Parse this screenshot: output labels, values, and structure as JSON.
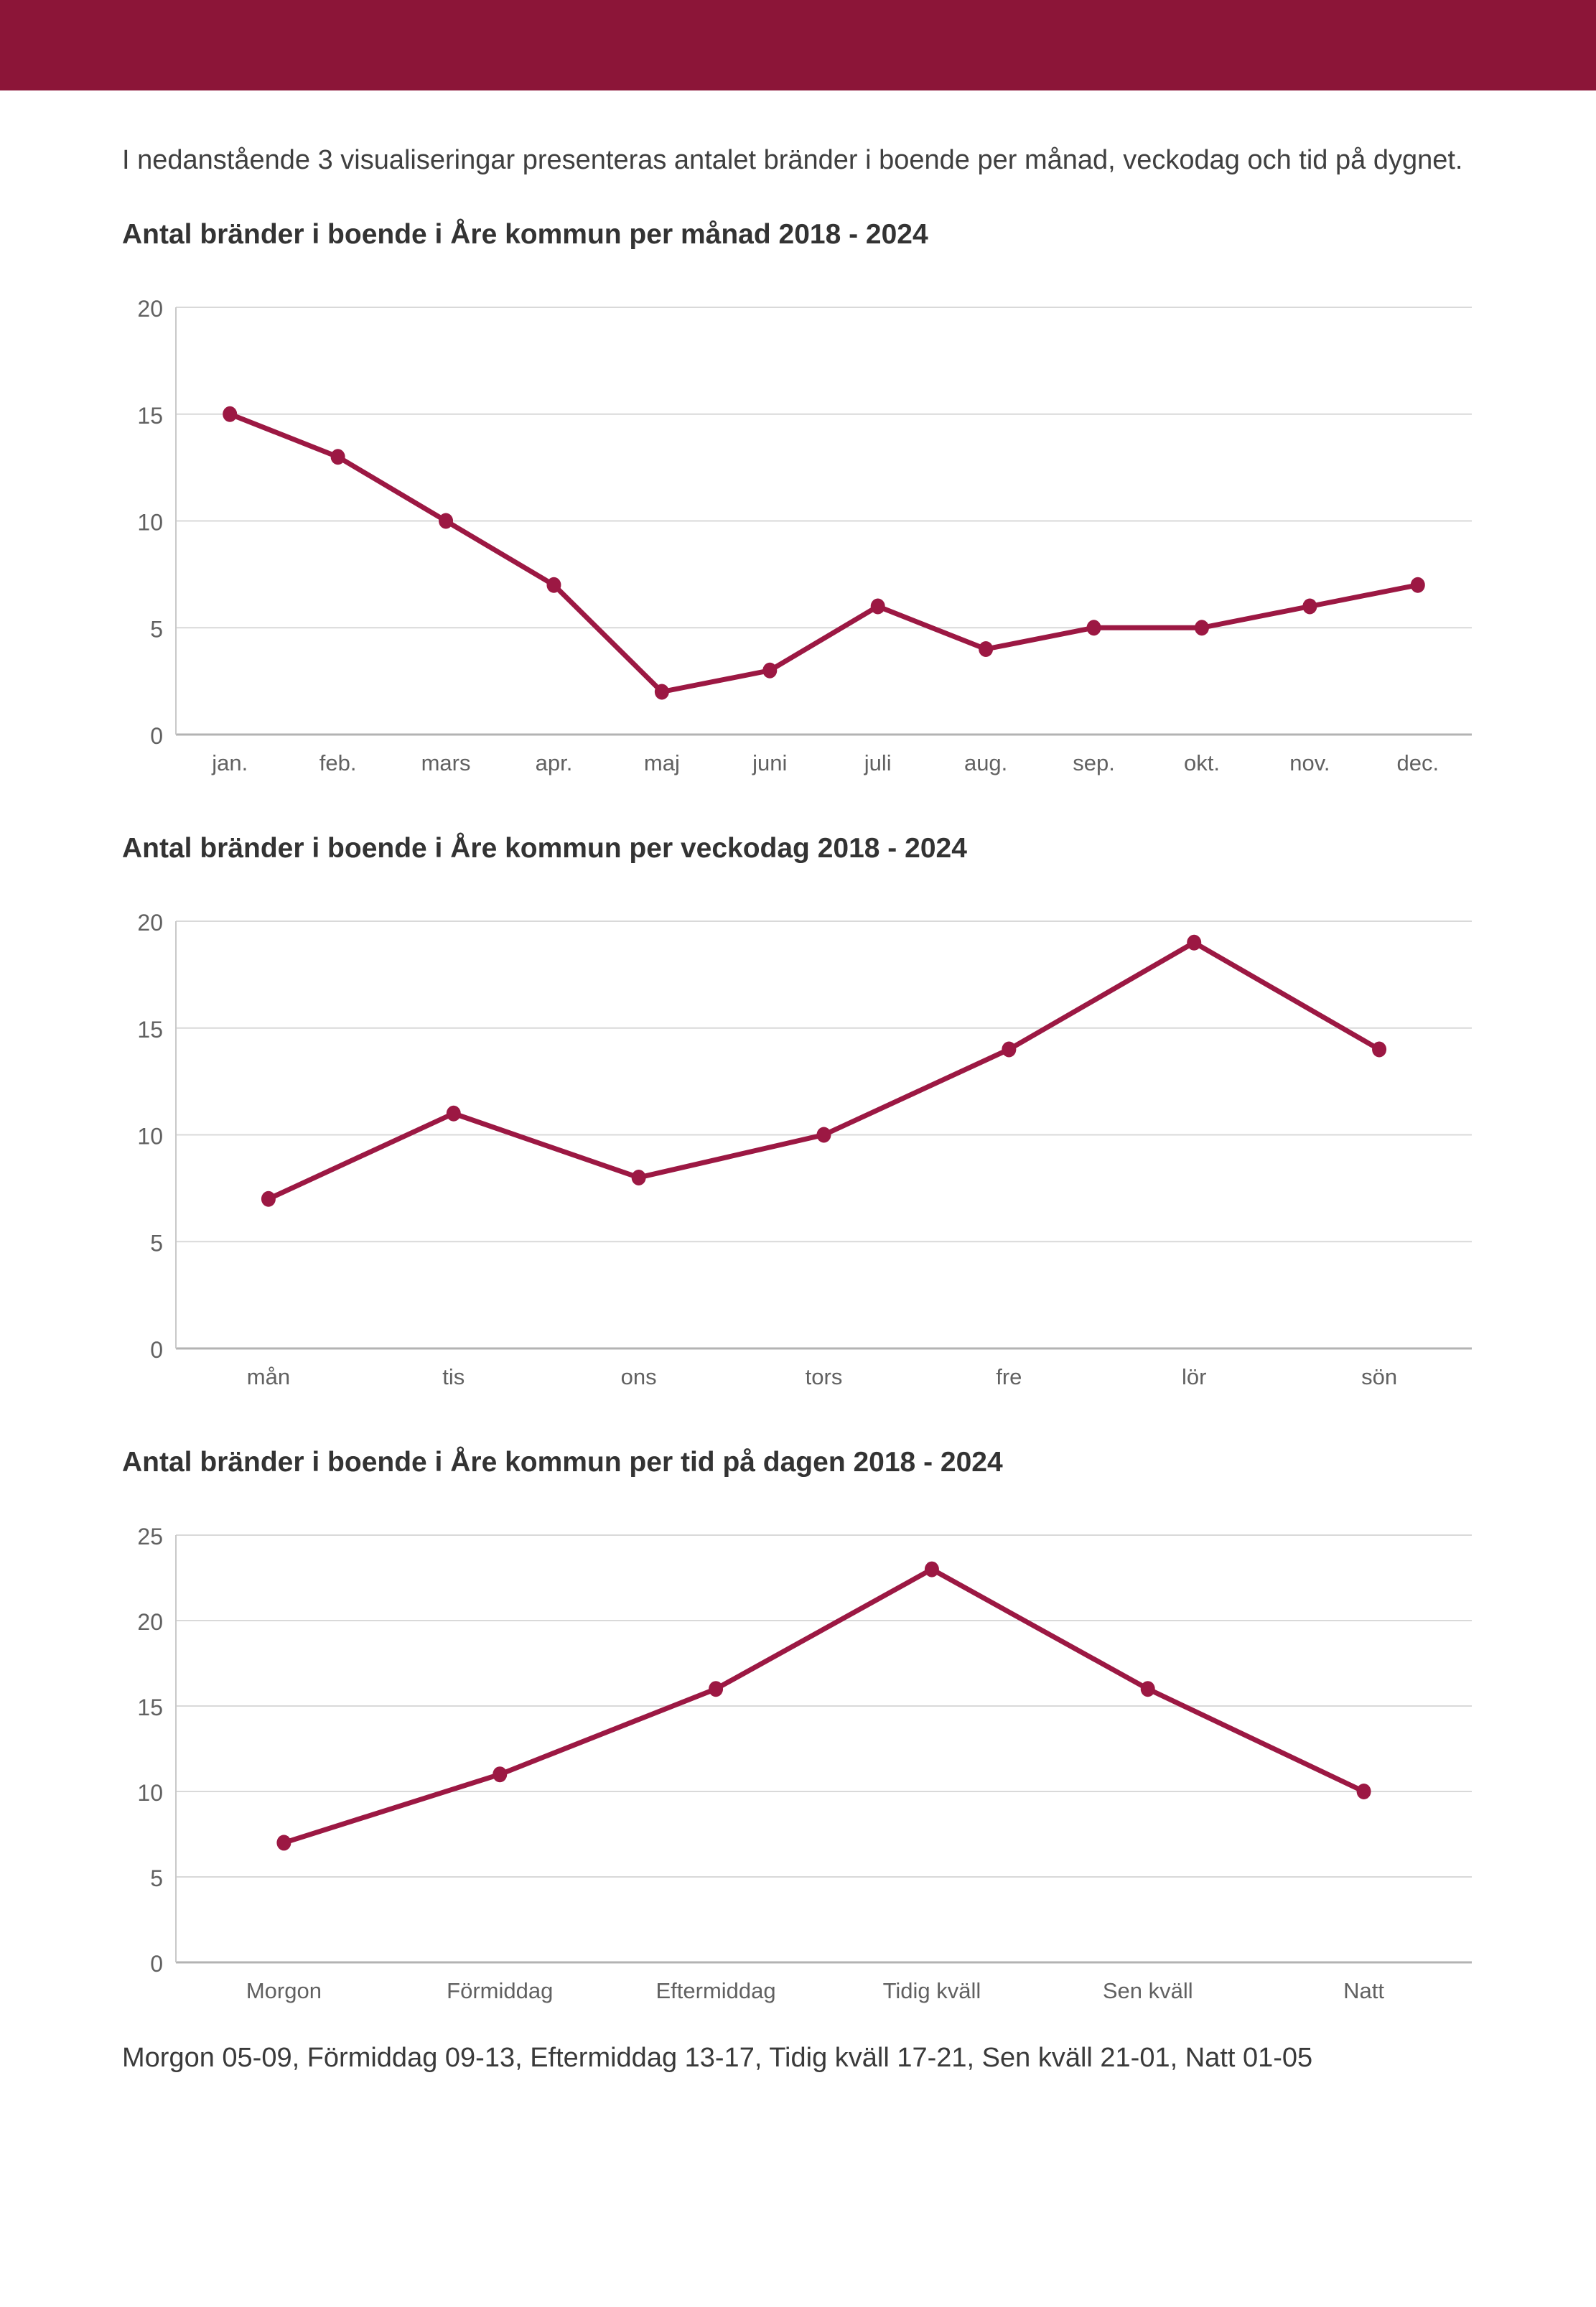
{
  "page": {
    "intro": "I nedanstående 3 visualiseringar presenteras antalet bränder i boende per månad, veckodag och tid på dygnet.",
    "footnote": "Morgon 05-09, Förmiddag 09-13, Eftermiddag 13-17, Tidig kväll 17-21, Sen kväll 21-01, Natt 01-05"
  },
  "colors": {
    "header_bar": "#8C1538",
    "line": "#9C1843",
    "marker": "#9C1843",
    "gridline": "#D9D9D9",
    "zero_axis_line": "#B3B3B3",
    "left_axis_line": "#C9C9C9",
    "tick_label": "#616161"
  },
  "chart_data": [
    {
      "type": "line",
      "title": "Antal bränder i boende i Åre kommun per månad 2018 - 2024",
      "categories": [
        "jan.",
        "feb.",
        "mars",
        "apr.",
        "maj",
        "juni",
        "juli",
        "aug.",
        "sep.",
        "okt.",
        "nov.",
        "dec."
      ],
      "values": [
        15,
        13,
        10,
        7,
        2,
        3,
        6,
        4,
        5,
        5,
        6,
        7
      ],
      "xlabel": "",
      "ylabel": "",
      "ylim": [
        0,
        20
      ],
      "yticks": [
        0,
        5,
        10,
        15,
        20
      ],
      "grid": "horizontal",
      "legend_position": "none"
    },
    {
      "type": "line",
      "title": "Antal bränder i boende i Åre kommun per veckodag 2018 - 2024",
      "categories": [
        "mån",
        "tis",
        "ons",
        "tors",
        "fre",
        "lör",
        "sön"
      ],
      "values": [
        7,
        11,
        8,
        10,
        14,
        19,
        14
      ],
      "xlabel": "",
      "ylabel": "",
      "ylim": [
        0,
        20
      ],
      "yticks": [
        0,
        5,
        10,
        15,
        20
      ],
      "grid": "horizontal",
      "legend_position": "none"
    },
    {
      "type": "line",
      "title": "Antal bränder i boende i Åre kommun per tid på dagen 2018 - 2024",
      "categories": [
        "Morgon",
        "Förmiddag",
        "Eftermiddag",
        "Tidig kväll",
        "Sen kväll",
        "Natt"
      ],
      "values": [
        7,
        11,
        16,
        23,
        16,
        10
      ],
      "xlabel": "",
      "ylabel": "",
      "ylim": [
        0,
        25
      ],
      "yticks": [
        0,
        5,
        10,
        15,
        20,
        25
      ],
      "grid": "horizontal",
      "legend_position": "none"
    }
  ]
}
